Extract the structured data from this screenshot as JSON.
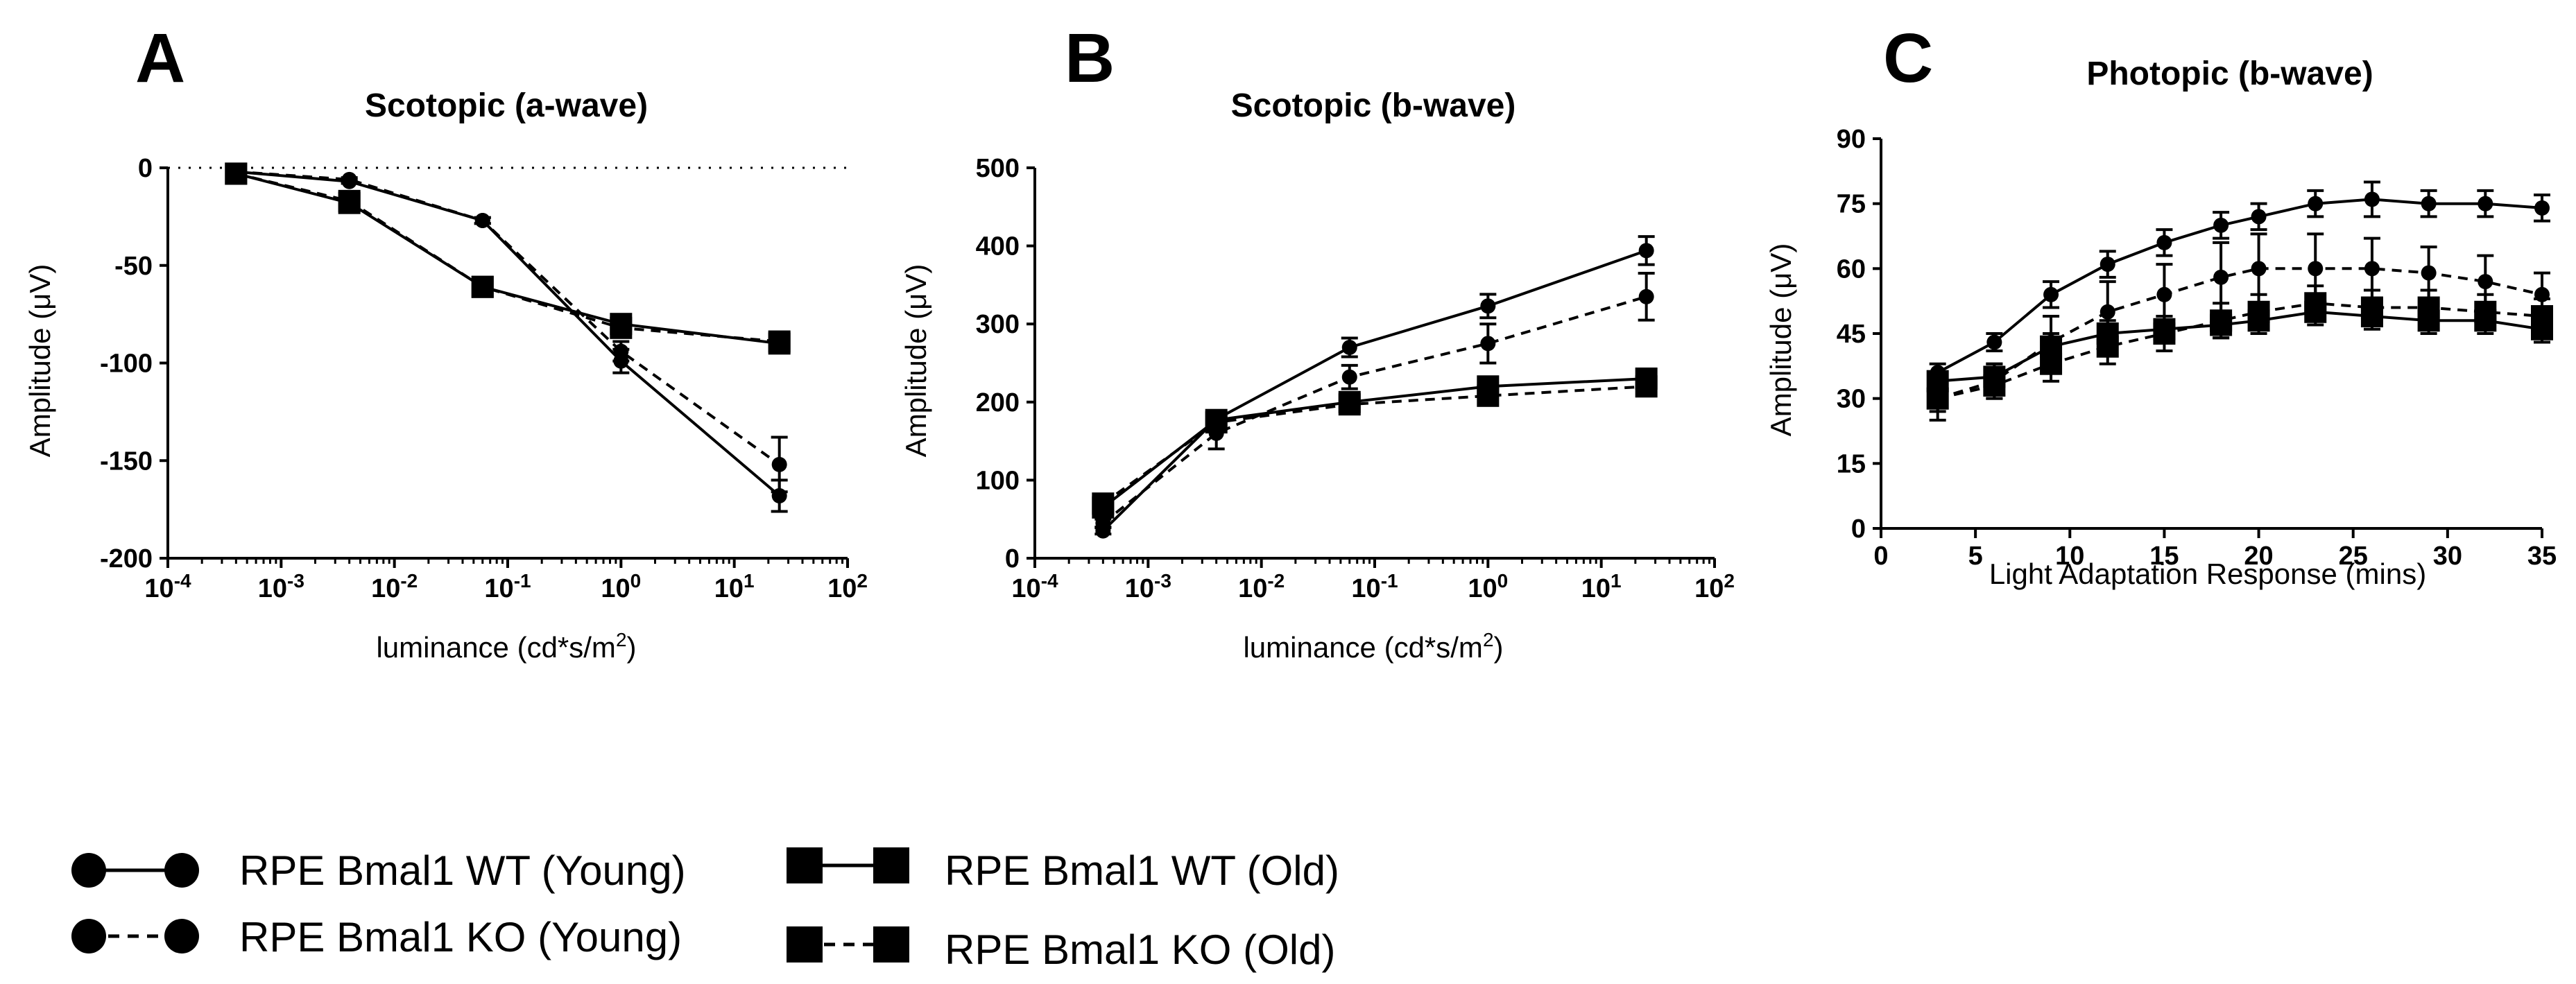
{
  "chart_data": [
    {
      "panel": "A",
      "title": "Scotopic (a-wave)",
      "type": "line",
      "xscale": "log",
      "xlim_exp": [
        -4,
        2
      ],
      "xticks_exp": [
        -4,
        -3,
        -2,
        -1,
        0,
        1,
        2
      ],
      "ylim": [
        -200,
        0
      ],
      "yticks": [
        0,
        -50,
        -100,
        -150,
        -200
      ],
      "xlabel": "luminance (cd*s/m2)",
      "xlabel_base": "luminance (cd*s/m",
      "xlabel_sup": "2",
      "xlabel_close": ")",
      "ylabel": "Amplitude (μV)",
      "zero_line": true,
      "x": [
        0.0004,
        0.004,
        0.06,
        1,
        25
      ],
      "series": [
        {
          "name": "RPE Bmal1 WT (Young)",
          "marker": "circle",
          "line": "solid",
          "values": [
            -2,
            -7,
            -27,
            -99,
            -168
          ],
          "errors": [
            1,
            1,
            1.5,
            6,
            8
          ]
        },
        {
          "name": "RPE Bmal1 KO (Young)",
          "marker": "circle",
          "line": "dashed",
          "values": [
            -2,
            -6,
            -27,
            -94,
            -152
          ],
          "errors": [
            1,
            1,
            1.5,
            5,
            14
          ]
        },
        {
          "name": "RPE Bmal1 WT (Old)",
          "marker": "square",
          "line": "solid",
          "values": [
            -3,
            -18,
            -61,
            -80,
            -90
          ],
          "errors": [
            1,
            2,
            2.5,
            3,
            2
          ]
        },
        {
          "name": "RPE Bmal1 KO (Old)",
          "marker": "square",
          "line": "dashed",
          "values": [
            -3,
            -17,
            -61,
            -82,
            -89
          ],
          "errors": [
            1,
            2,
            2.5,
            3,
            2
          ]
        }
      ]
    },
    {
      "panel": "B",
      "title": "Scotopic (b-wave)",
      "type": "line",
      "xscale": "log",
      "xlim_exp": [
        -4,
        2
      ],
      "xticks_exp": [
        -4,
        -3,
        -2,
        -1,
        0,
        1,
        2
      ],
      "ylim": [
        0,
        500
      ],
      "yticks": [
        0,
        100,
        200,
        300,
        400,
        500
      ],
      "xlabel": "luminance (cd*s/m2)",
      "xlabel_base": "luminance (cd*s/m",
      "xlabel_sup": "2",
      "xlabel_close": ")",
      "ylabel": "Amplitude (μV)",
      "zero_line": false,
      "x": [
        0.0004,
        0.004,
        0.06,
        1,
        25
      ],
      "series": [
        {
          "name": "RPE Bmal1 WT (Young)",
          "marker": "circle",
          "line": "solid",
          "values": [
            35,
            178,
            270,
            323,
            394
          ],
          "errors": [
            4,
            8,
            12,
            15,
            18
          ]
        },
        {
          "name": "RPE Bmal1 KO (Young)",
          "marker": "circle",
          "line": "dashed",
          "values": [
            45,
            160,
            232,
            275,
            335
          ],
          "errors": [
            5,
            20,
            15,
            25,
            30
          ]
        },
        {
          "name": "RPE Bmal1 WT (Old)",
          "marker": "square",
          "line": "solid",
          "values": [
            65,
            177,
            200,
            220,
            230
          ],
          "errors": [
            5,
            7,
            8,
            10,
            10
          ]
        },
        {
          "name": "RPE Bmal1 KO (Old)",
          "marker": "square",
          "line": "dashed",
          "values": [
            70,
            174,
            197,
            208,
            220
          ],
          "errors": [
            5,
            7,
            8,
            8,
            10
          ]
        }
      ]
    },
    {
      "panel": "C",
      "title": "Photopic (b-wave)",
      "type": "line",
      "xscale": "linear",
      "xlim": [
        0,
        35
      ],
      "xticks": [
        0,
        5,
        10,
        15,
        20,
        25,
        30,
        35
      ],
      "ylim": [
        0,
        90
      ],
      "yticks": [
        0,
        15,
        30,
        45,
        60,
        75,
        90
      ],
      "xlabel": "Light Adaptation Response (mins)",
      "ylabel": "Amplitude (μV)",
      "zero_line": false,
      "x": [
        3,
        6,
        9,
        12,
        15,
        18,
        20,
        23,
        26,
        29,
        32,
        35
      ],
      "series": [
        {
          "name": "RPE Bmal1 WT (Young)",
          "marker": "circle",
          "line": "solid",
          "values": [
            36,
            43,
            54,
            61,
            66,
            70,
            72,
            75,
            76,
            75,
            75,
            74
          ],
          "errors": [
            2,
            2,
            3,
            3,
            3,
            3,
            3,
            3,
            4,
            3,
            3,
            3
          ]
        },
        {
          "name": "RPE Bmal1 KO (Young)",
          "marker": "circle",
          "line": "dashed",
          "values": [
            30,
            34,
            43,
            50,
            54,
            58,
            60,
            60,
            60,
            59,
            57,
            54
          ],
          "errors": [
            5,
            4,
            6,
            7,
            7,
            8,
            8,
            8,
            7,
            6,
            6,
            5
          ]
        },
        {
          "name": "RPE Bmal1 WT (Old)",
          "marker": "square",
          "line": "solid",
          "values": [
            34,
            35,
            42,
            45,
            46,
            47,
            48,
            50,
            49,
            48,
            48,
            46
          ],
          "errors": [
            2,
            3,
            3,
            3,
            3,
            3,
            3,
            3,
            3,
            3,
            3,
            3
          ]
        },
        {
          "name": "RPE Bmal1 KO (Old)",
          "marker": "square",
          "line": "dashed",
          "values": [
            30,
            33,
            38,
            42,
            45,
            48,
            50,
            52,
            51,
            51,
            50,
            49
          ],
          "errors": [
            3,
            3,
            4,
            4,
            4,
            4,
            4,
            4,
            4,
            4,
            4,
            4
          ]
        }
      ]
    }
  ],
  "legend": [
    {
      "label": "RPE Bmal1 WT (Young)",
      "marker": "circle",
      "line": "solid"
    },
    {
      "label": "RPE Bmal1 KO (Young)",
      "marker": "circle",
      "line": "dashed"
    },
    {
      "label": "RPE Bmal1 WT (Old)",
      "marker": "square",
      "line": "solid"
    },
    {
      "label": "RPE Bmal1 KO (Old)",
      "marker": "square",
      "line": "dashed"
    }
  ],
  "colors": {
    "ink": "#000000",
    "background": "#ffffff"
  }
}
